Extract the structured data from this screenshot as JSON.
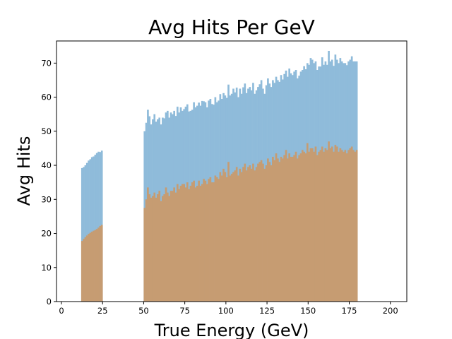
{
  "chart_data": {
    "type": "bar",
    "title": "Avg Hits Per GeV",
    "xlabel": "True Energy (GeV)",
    "ylabel": "Avg Hits",
    "xlim": [
      -3,
      210
    ],
    "ylim": [
      0,
      76.5
    ],
    "bin_width": 1,
    "xticks": [
      0,
      25,
      50,
      75,
      100,
      125,
      150,
      175,
      200
    ],
    "yticks": [
      0,
      10,
      20,
      30,
      40,
      50,
      60,
      70
    ],
    "grid": false,
    "series": [
      {
        "color": "#8fbbda",
        "segments": [
          {
            "x_start": 12,
            "values": [
              39.2,
              39.5,
              40.0,
              40.7,
              41.4,
              41.8,
              42.4,
              42.6,
              43.1,
              43.6,
              44.0,
              43.9,
              44.3
            ]
          },
          {
            "x_start": 50,
            "values": [
              50.0,
              52.5,
              56.3,
              54.4,
              52.0,
              53.5,
              55.0,
              52.8,
              53.5,
              54.0,
              52.0,
              54.0,
              53.8,
              55.5,
              56.0,
              54.0,
              55.5,
              55.0,
              56.0,
              54.5,
              57.2,
              55.5,
              57.0,
              56.0,
              56.5,
              57.2,
              57.9,
              55.8,
              56.0,
              56.3,
              58.5,
              57.0,
              57.5,
              58.4,
              57.5,
              58.9,
              58.8,
              58.5,
              57.0,
              59.0,
              59.5,
              58.0,
              57.8,
              60.0,
              58.5,
              59.0,
              60.9,
              59.5,
              61.2,
              60.5,
              59.8,
              63.7,
              60.5,
              61.0,
              62.5,
              61.4,
              62.8,
              60.0,
              62.5,
              61.0,
              62.9,
              64.0,
              61.2,
              62.5,
              63.0,
              62.0,
              64.2,
              61.0,
              62.0,
              63.0,
              63.8,
              65.0,
              62.5,
              61.0,
              63.5,
              65.5,
              64.0,
              63.0,
              65.0,
              64.2,
              66.0,
              65.0,
              64.5,
              66.5,
              65.2,
              66.8,
              67.8,
              66.0,
              68.4,
              67.0,
              66.5,
              67.5,
              68.0,
              65.5,
              66.3,
              67.5,
              68.0,
              69.1,
              68.2,
              70.0,
              69.5,
              71.5,
              71.0,
              70.0,
              70.5,
              68.0,
              69.0,
              69.0,
              71.7,
              69.5,
              70.5,
              69.5,
              73.6,
              70.5,
              71.0,
              69.2,
              72.5,
              71.0,
              70.0,
              71.5,
              70.5,
              70.0,
              70.0,
              69.4,
              70.5,
              71.0,
              72.0,
              70.5,
              70.5,
              70.5
            ]
          }
        ]
      },
      {
        "color": "#c69c72",
        "segments": [
          {
            "x_start": 12,
            "values": [
              17.8,
              18.4,
              18.9,
              19.4,
              19.9,
              20.2,
              20.5,
              20.8,
              21.0,
              21.3,
              21.7,
              22.2,
              22.5
            ]
          },
          {
            "x_start": 50,
            "values": [
              27.5,
              30.0,
              33.5,
              31.5,
              30.5,
              31.0,
              32.0,
              30.5,
              31.5,
              32.5,
              29.5,
              31.0,
              31.5,
              33.5,
              32.0,
              31.0,
              32.5,
              32.5,
              33.5,
              32.0,
              34.5,
              33.0,
              34.0,
              34.5,
              34.5,
              33.5,
              35.0,
              33.0,
              34.0,
              35.0,
              35.5,
              33.5,
              34.0,
              35.5,
              34.0,
              34.5,
              36.0,
              35.5,
              34.5,
              36.0,
              36.5,
              35.0,
              35.0,
              37.0,
              36.5,
              36.0,
              38.0,
              37.0,
              39.0,
              38.0,
              36.5,
              41.0,
              37.0,
              37.5,
              38.0,
              38.5,
              39.5,
              37.0,
              39.0,
              38.0,
              39.5,
              40.5,
              38.5,
              39.5,
              40.0,
              39.0,
              40.5,
              38.5,
              39.5,
              40.5,
              41.0,
              41.5,
              40.5,
              39.0,
              40.0,
              42.0,
              41.0,
              40.0,
              42.5,
              41.5,
              43.5,
              42.0,
              41.0,
              42.5,
              42.0,
              43.0,
              44.5,
              42.0,
              43.5,
              42.5,
              42.5,
              43.0,
              44.0,
              42.0,
              43.0,
              43.5,
              44.5,
              44.0,
              43.5,
              46.5,
              44.0,
              45.0,
              45.0,
              44.0,
              45.5,
              43.0,
              44.0,
              44.5,
              45.5,
              44.0,
              45.0,
              44.5,
              47.0,
              45.0,
              45.5,
              44.0,
              46.0,
              45.5,
              44.0,
              45.0,
              44.5,
              44.0,
              44.5,
              43.5,
              44.5,
              45.0,
              45.5,
              44.5,
              44.0,
              44.5
            ]
          }
        ]
      }
    ]
  }
}
